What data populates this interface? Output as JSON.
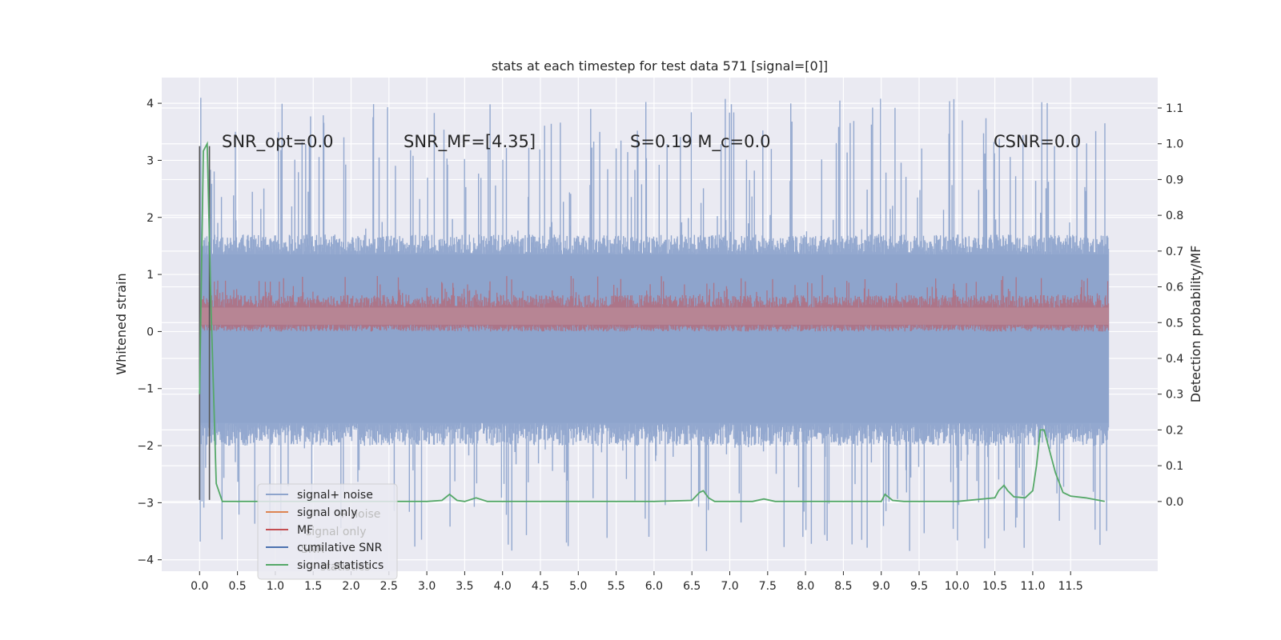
{
  "chart_data": {
    "type": "line",
    "title": "stats at each timestep for test data 571 [signal=[0]]",
    "xlabel": "",
    "ylabel": "Whitened strain",
    "y2label": "Detection probability/MF",
    "xlim": [
      -0.5,
      12.65
    ],
    "ylim": [
      -4.2,
      4.45
    ],
    "y2lim": [
      -0.195,
      1.185
    ],
    "xticks": [
      "0.0",
      "0.5",
      "1.0",
      "1.5",
      "2.0",
      "2.5",
      "3.0",
      "3.5",
      "4.0",
      "4.5",
      "5.0",
      "5.5",
      "6.0",
      "6.5",
      "7.0",
      "7.5",
      "8.0",
      "8.5",
      "9.0",
      "9.5",
      "10.0",
      "10.5",
      "11.0",
      "11.5"
    ],
    "yticks": [
      "4",
      "3",
      "2",
      "1",
      "0",
      "−1",
      "−2",
      "−3",
      "−4"
    ],
    "y2ticks": [
      "1.1",
      "1.0",
      "0.9",
      "0.8",
      "0.7",
      "0.6",
      "0.5",
      "0.4",
      "0.3",
      "0.2",
      "0.1",
      "0.0"
    ],
    "grid": true,
    "legend_position": "lower-left",
    "colors": {
      "signal_noise": "#8ea4cc",
      "signal_only": "#dd8452",
      "mf": "#c44e52",
      "cumulative_snr": "#4c72b0",
      "signal_statistics": "#55a868",
      "background": "#eaeaf2",
      "grid": "#ffffff"
    },
    "annotations": [
      {
        "text": "SNR_opt=0.0"
      },
      {
        "text": "SNR_MF=[4.35]"
      },
      {
        "text": "S=0.19   M_c=0.0"
      },
      {
        "text": "CSNR=0.0"
      }
    ],
    "legend": [
      {
        "label": "signal+ noise",
        "color": "#8ea4cc"
      },
      {
        "label": "signal only",
        "color": "#dd8452"
      },
      {
        "label": "MF",
        "color": "#c44e52"
      },
      {
        "label": "cumilative SNR",
        "color": "#4c72b0"
      },
      {
        "label": "signal statistics",
        "color": "#55a868"
      }
    ],
    "ghost_legend": [
      "+ noise",
      "signal only",
      "SNR",
      "statistics"
    ],
    "series": [
      {
        "name": "signal+ noise",
        "axis": "left",
        "style": "dense-noise-band",
        "x_range": [
          0.0,
          12.0
        ],
        "band_upper": 1.35,
        "band_lower": -1.6,
        "peak_max": 4.1,
        "peak_min": -3.85
      },
      {
        "name": "MF",
        "axis": "left",
        "style": "dense-noise-band",
        "x_range": [
          0.0,
          12.0
        ],
        "band_upper": 0.6,
        "band_lower": 0.0,
        "peak_max": 1.0
      },
      {
        "name": "signal statistics",
        "axis": "right",
        "x": [
          0.0,
          0.05,
          0.1,
          0.15,
          0.22,
          0.3,
          0.4,
          0.6,
          1.0,
          1.5,
          2.0,
          2.5,
          3.0,
          3.2,
          3.3,
          3.4,
          3.5,
          3.65,
          3.8,
          4.0,
          5.0,
          6.0,
          6.5,
          6.6,
          6.65,
          6.72,
          6.8,
          6.9,
          7.0,
          7.3,
          7.45,
          7.6,
          8.0,
          8.5,
          9.0,
          9.05,
          9.15,
          9.3,
          9.5,
          10.0,
          10.5,
          10.55,
          10.62,
          10.67,
          10.75,
          10.9,
          11.0,
          11.05,
          11.1,
          11.15,
          11.2,
          11.3,
          11.4,
          11.5,
          11.7,
          11.95
        ],
        "y": [
          0.3,
          0.98,
          1.0,
          0.55,
          0.05,
          0.0,
          0.0,
          0.0,
          0.0,
          0.0,
          0.0,
          0.0,
          0.0,
          0.003,
          0.02,
          0.003,
          0.0,
          0.01,
          0.0,
          0.0,
          0.0,
          0.0,
          0.003,
          0.025,
          0.03,
          0.01,
          0.0,
          0.0,
          0.0,
          0.0,
          0.007,
          0.0,
          0.0,
          0.0,
          0.0,
          0.02,
          0.003,
          0.0,
          0.0,
          0.0,
          0.01,
          0.03,
          0.045,
          0.03,
          0.013,
          0.01,
          0.03,
          0.1,
          0.2,
          0.2,
          0.16,
          0.08,
          0.025,
          0.015,
          0.01,
          0.0
        ]
      },
      {
        "name": "vertical markers",
        "axis": "left",
        "style": "vlines",
        "lines": [
          {
            "x": 0.0,
            "y0": -2.95,
            "y1": 3.25
          },
          {
            "x": 0.13,
            "y0": -2.95,
            "y1": 3.25
          }
        ]
      }
    ]
  }
}
